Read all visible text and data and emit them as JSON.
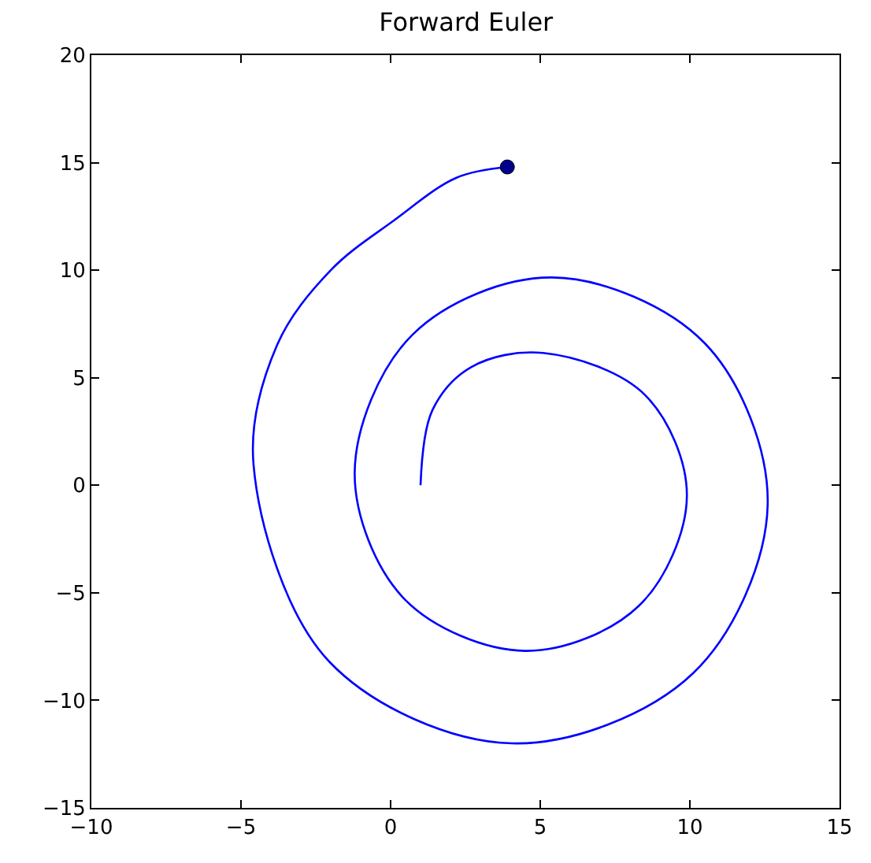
{
  "chart_data": {
    "type": "line",
    "title": "Forward Euler",
    "series": [
      {
        "color": "#0000ff",
        "line_style": "solid",
        "x": [
          1,
          1.4,
          2.7,
          5.1,
          8.5,
          9.9,
          8.3,
          4.5,
          0.47,
          -1.2,
          0.73,
          5.4,
          10.5,
          12.6,
          10.1,
          4.05,
          -2.05,
          -4.58,
          -3.8,
          -2.0,
          0.1,
          2.2,
          3.9
        ],
        "values": [
          0,
          3.5,
          5.5,
          6.15,
          4.2,
          -0.5,
          -5.6,
          -7.7,
          -5.3,
          0.6,
          7.0,
          9.66,
          6.6,
          -0.9,
          -8.75,
          -12,
          -8.2,
          0.95,
          6.5,
          10,
          12.3,
          14.3,
          14.8
        ]
      },
      {
        "type": "scatter",
        "color": "#00008b",
        "marker": "circle",
        "x": [
          3.9
        ],
        "values": [
          14.8
        ]
      }
    ],
    "xlim": [
      -10,
      15
    ],
    "xticks": [
      -10,
      -5,
      0,
      5,
      10,
      15
    ],
    "ylim": [
      -15,
      20
    ],
    "yticks": [
      -15,
      -10,
      -5,
      0,
      5,
      10,
      15,
      20
    ],
    "grid": false
  }
}
